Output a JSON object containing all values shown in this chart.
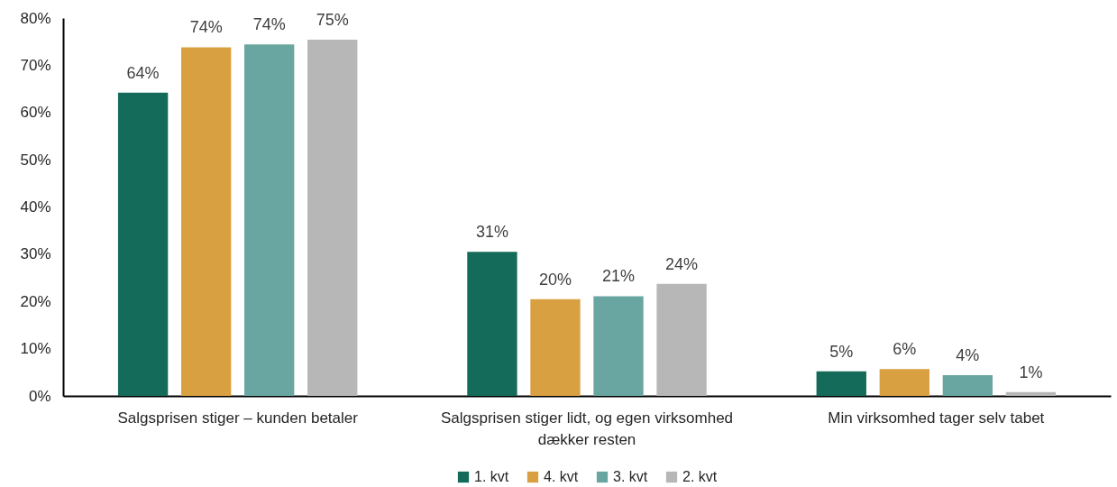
{
  "chart_data": {
    "type": "bar",
    "categories": [
      "Salgsprisen stiger – kunden betaler",
      "Salgsprisen stiger lidt, og egen virksomhed dækker resten",
      "Min virksomhed tager selv tabet"
    ],
    "series": [
      {
        "name": "1. kvt",
        "color": "#146b5a",
        "values": [
          64.2,
          30.5,
          5.2
        ],
        "value_labels": [
          "64%",
          "31%",
          "5%"
        ]
      },
      {
        "name": "4. kvt",
        "color": "#d9a042",
        "values": [
          73.8,
          20.5,
          5.7
        ],
        "value_labels": [
          "74%",
          "20%",
          "6%"
        ]
      },
      {
        "name": "3. kvt",
        "color": "#6aa6a1",
        "values": [
          74.4,
          21.1,
          4.4
        ],
        "value_labels": [
          "74%",
          "21%",
          "4%"
        ]
      },
      {
        "name": "2. kvt",
        "color": "#b7b7b7",
        "values": [
          75.4,
          23.7,
          0.8
        ],
        "value_labels": [
          "75%",
          "24%",
          "1%"
        ]
      }
    ],
    "ylim": [
      0,
      80
    ],
    "yticks": [
      {
        "value": 0,
        "label": "0%"
      },
      {
        "value": 10,
        "label": "10%"
      },
      {
        "value": 20,
        "label": "20%"
      },
      {
        "value": 30,
        "label": "30%"
      },
      {
        "value": 40,
        "label": "40%"
      },
      {
        "value": 50,
        "label": "50%"
      },
      {
        "value": 60,
        "label": "60%"
      },
      {
        "value": 70,
        "label": "70%"
      },
      {
        "value": 80,
        "label": "80%"
      }
    ],
    "grid": false,
    "legend": "bottom"
  }
}
